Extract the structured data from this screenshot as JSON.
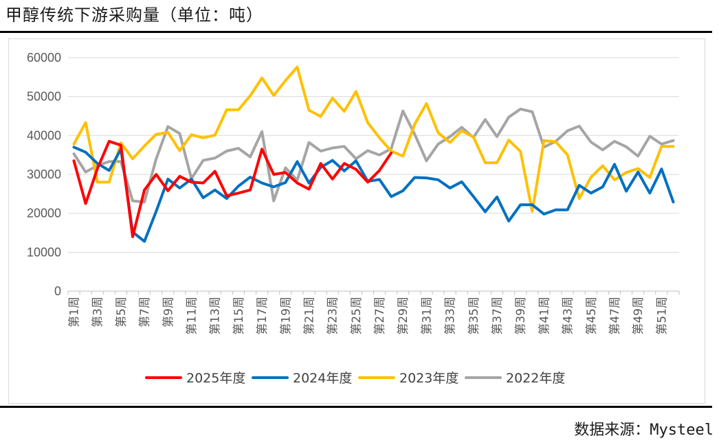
{
  "header": {
    "title": "甲醇传统下游采购量（单位：吨）"
  },
  "footer": {
    "source_label": "数据来源：",
    "source_value": "Mysteel"
  },
  "chart_data": {
    "type": "line",
    "title": "",
    "xlabel": "",
    "ylabel": "",
    "ylim": [
      0,
      60000
    ],
    "yticks": [
      0,
      10000,
      20000,
      30000,
      40000,
      50000,
      60000
    ],
    "grid": true,
    "legend_position": "bottom",
    "categories": [
      "第1周",
      "第2周",
      "第3周",
      "第4周",
      "第5周",
      "第6周",
      "第7周",
      "第8周",
      "第9周",
      "第10周",
      "第11周",
      "第12周",
      "第13周",
      "第14周",
      "第15周",
      "第16周",
      "第17周",
      "第18周",
      "第19周",
      "第20周",
      "第21周",
      "第22周",
      "第23周",
      "第24周",
      "第25周",
      "第26周",
      "第27周",
      "第28周",
      "第29周",
      "第30周",
      "第31周",
      "第32周",
      "第33周",
      "第34周",
      "第35周",
      "第36周",
      "第37周",
      "第38周",
      "第39周",
      "第40周",
      "第41周",
      "第42周",
      "第43周",
      "第44周",
      "第45周",
      "第46周",
      "第47周",
      "第48周",
      "第49周",
      "第50周",
      "第51周",
      "第52周"
    ],
    "tick_labels": [
      "第1周",
      "第3周",
      "第5周",
      "第7周",
      "第9周",
      "第11周",
      "第13周",
      "第15周",
      "第17周",
      "第19周",
      "第21周",
      "第23周",
      "第25周",
      "第27周",
      "第29周",
      "第31周",
      "第33周",
      "第35周",
      "第37周",
      "第39周",
      "第41周",
      "第43周",
      "第45周",
      "第47周",
      "第49周",
      "第51周"
    ],
    "series": [
      {
        "name": "2025年度",
        "color": "#ff0000",
        "values": [
          33500,
          22500,
          31500,
          38500,
          37500,
          14000,
          26000,
          30000,
          25800,
          29500,
          28000,
          27800,
          30800,
          24500,
          25200,
          26000,
          36500,
          30000,
          30500,
          27800,
          26200,
          32800,
          28800,
          32800,
          31300,
          28000,
          31000,
          35500,
          null,
          null,
          null,
          null,
          null,
          null,
          null,
          null,
          null,
          null,
          null,
          null,
          null,
          null,
          null,
          null,
          null,
          null,
          null,
          null,
          null,
          null,
          null,
          null
        ]
      },
      {
        "name": "2024年度",
        "color": "#0070c0",
        "values": [
          37000,
          35700,
          32800,
          31000,
          36500,
          15200,
          12800,
          20500,
          28800,
          26500,
          28800,
          24000,
          26000,
          23800,
          27000,
          29300,
          27800,
          26800,
          27900,
          33300,
          27800,
          31800,
          33600,
          30900,
          33500,
          28200,
          28700,
          24300,
          25800,
          29200,
          29100,
          28600,
          26500,
          28100,
          24300,
          20400,
          24200,
          18000,
          22200,
          22200,
          19800,
          20900,
          20900,
          27200,
          25200,
          26800,
          32600,
          25700,
          30600,
          25200,
          31400,
          22900
        ]
      },
      {
        "name": "2023年度",
        "color": "#ffc000",
        "values": [
          37800,
          43300,
          28000,
          28000,
          38100,
          34000,
          37300,
          40300,
          40800,
          36100,
          40200,
          39400,
          40100,
          46600,
          46600,
          50200,
          54800,
          50300,
          54100,
          57600,
          46500,
          44900,
          49600,
          46200,
          51300,
          43300,
          39400,
          36000,
          34700,
          42900,
          48200,
          40700,
          38200,
          41200,
          39600,
          33000,
          33000,
          38800,
          35900,
          20500,
          38700,
          38400,
          35000,
          23800,
          29300,
          32200,
          28600,
          30500,
          31500,
          29200,
          37200,
          37200
        ]
      },
      {
        "name": "2022年度",
        "color": "#a5a5a5",
        "values": [
          35300,
          30600,
          32300,
          33300,
          33300,
          23200,
          22900,
          34000,
          42300,
          40500,
          28900,
          33600,
          34200,
          36000,
          36700,
          34500,
          41000,
          23200,
          31700,
          28500,
          38200,
          36000,
          36800,
          37200,
          34000,
          36100,
          35000,
          36600,
          46300,
          40300,
          33500,
          37800,
          39700,
          42100,
          39500,
          44100,
          39700,
          44700,
          46800,
          46100,
          37000,
          38500,
          41200,
          42400,
          38300,
          36300,
          38500,
          37100,
          34700,
          39800,
          37800,
          38700
        ]
      }
    ]
  }
}
